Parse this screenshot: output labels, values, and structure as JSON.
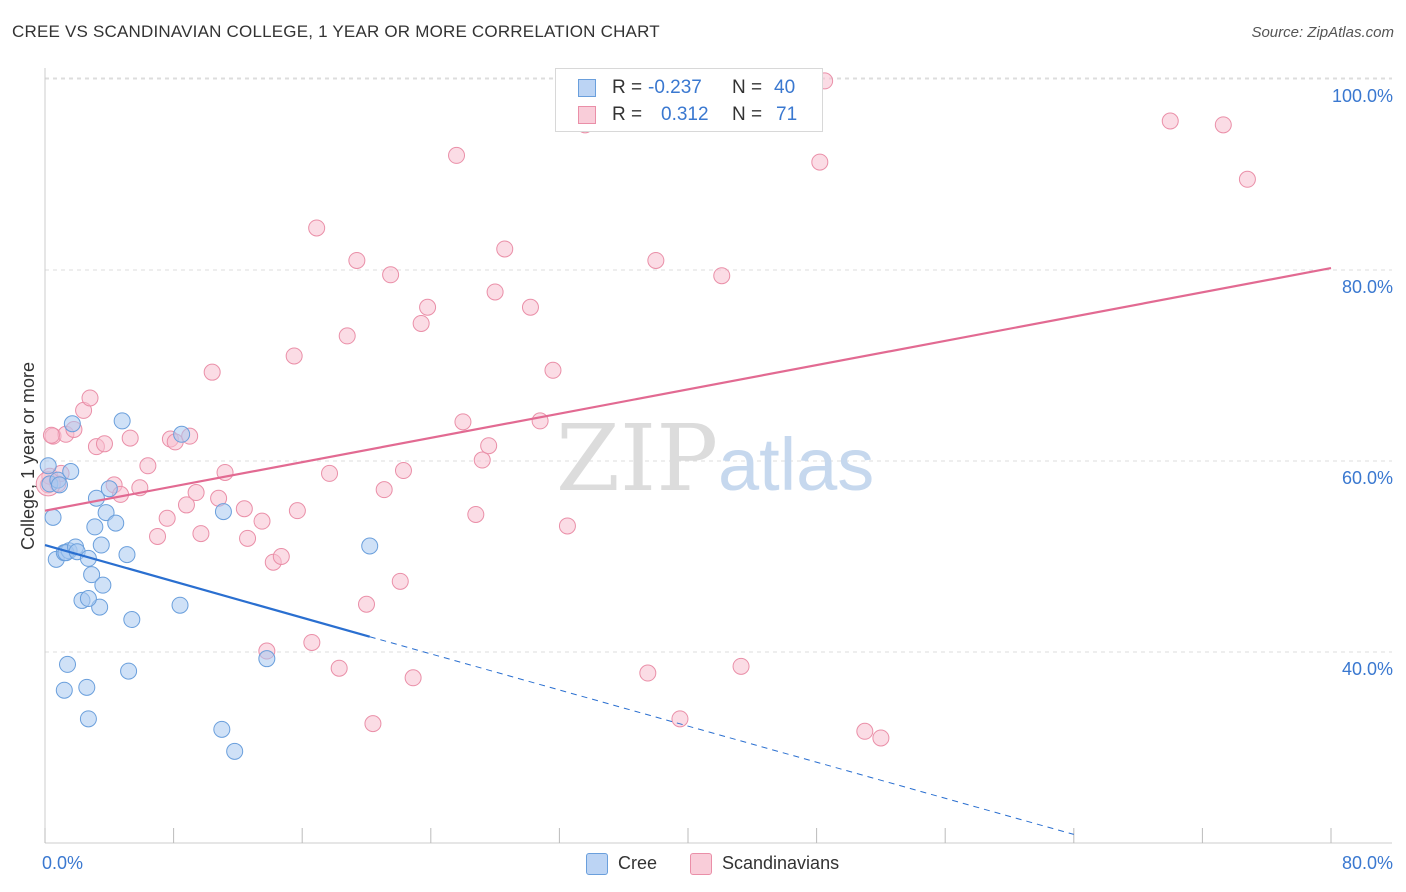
{
  "header": {
    "title": "CREE VS SCANDINAVIAN COLLEGE, 1 YEAR OR MORE CORRELATION CHART",
    "source": "Source: ZipAtlas.com"
  },
  "watermark": {
    "zip": "ZIP",
    "atlas": "atlas"
  },
  "legend": {
    "r_label": "R = ",
    "n_label": "N = ",
    "cree": {
      "r": "-0.237",
      "n": "40"
    },
    "scandinavians": {
      "r": "0.312",
      "n": "71"
    }
  },
  "colors": {
    "cree_fill": "#a8c8f0",
    "cree_stroke": "#6a9fdc",
    "cree_line": "#2a6fd0",
    "scand_fill": "#f7bfcf",
    "scand_stroke": "#ea8fa8",
    "scand_line": "#e26a92",
    "tick_label": "#3a78d0",
    "grid": "#dddddd"
  },
  "chart_data": {
    "type": "scatter",
    "title": "CREE VS SCANDINAVIAN COLLEGE, 1 YEAR OR MORE CORRELATION CHART",
    "xlabel": "",
    "ylabel": "College, 1 year or more",
    "xlim": [
      0,
      80
    ],
    "ylim": [
      20,
      102
    ],
    "x_tick_labels": [
      "0.0%",
      "80.0%"
    ],
    "y_ticks": [
      40,
      60,
      80,
      100
    ],
    "y_tick_labels": [
      "40.0%",
      "60.0%",
      "80.0%",
      "100.0%"
    ],
    "grid": true,
    "legend_position": "top-center",
    "series": [
      {
        "name": "Cree",
        "r": -0.237,
        "n": 40,
        "trend": {
          "x_start": 0,
          "y_start": 51.2,
          "x_solid_end": 20.2,
          "y_solid_end": 41.6,
          "x_end": 64.0,
          "y_end": 20.9
        },
        "points": [
          [
            0.2,
            59.5
          ],
          [
            0.3,
            57.6
          ],
          [
            0.5,
            54.1
          ],
          [
            0.8,
            58.0
          ],
          [
            0.7,
            49.7
          ],
          [
            1.2,
            50.4
          ],
          [
            1.5,
            50.6
          ],
          [
            1.6,
            58.9
          ],
          [
            1.7,
            63.9
          ],
          [
            1.3,
            50.4
          ],
          [
            1.9,
            51.0
          ],
          [
            2.0,
            50.5
          ],
          [
            2.3,
            45.4
          ],
          [
            2.7,
            49.8
          ],
          [
            2.9,
            48.1
          ],
          [
            3.1,
            53.1
          ],
          [
            3.2,
            56.1
          ],
          [
            3.4,
            44.7
          ],
          [
            3.5,
            51.2
          ],
          [
            3.6,
            47.0
          ],
          [
            3.8,
            54.6
          ],
          [
            4.0,
            57.1
          ],
          [
            4.4,
            53.5
          ],
          [
            4.8,
            64.2
          ],
          [
            5.1,
            50.2
          ],
          [
            5.2,
            38.0
          ],
          [
            5.4,
            43.4
          ],
          [
            2.7,
            45.6
          ],
          [
            8.4,
            44.9
          ],
          [
            8.5,
            62.8
          ],
          [
            11.1,
            54.7
          ],
          [
            11.0,
            31.9
          ],
          [
            11.8,
            29.6
          ],
          [
            13.8,
            39.3
          ],
          [
            20.2,
            51.1
          ],
          [
            1.4,
            38.7
          ],
          [
            1.2,
            36.0
          ],
          [
            2.6,
            36.3
          ],
          [
            2.7,
            33.0
          ],
          [
            0.9,
            57.5
          ]
        ]
      },
      {
        "name": "Scandinavians",
        "r": 0.312,
        "n": 71,
        "trend": {
          "x_start": 0,
          "y_start": 54.8,
          "x_end": 80,
          "y_end": 80.2
        },
        "points": [
          [
            0.2,
            57.5
          ],
          [
            0.3,
            58.4
          ],
          [
            0.5,
            62.6
          ],
          [
            0.8,
            57.6
          ],
          [
            1.3,
            62.8
          ],
          [
            1.8,
            63.3
          ],
          [
            2.4,
            65.3
          ],
          [
            2.8,
            66.6
          ],
          [
            3.2,
            61.5
          ],
          [
            3.7,
            61.8
          ],
          [
            4.3,
            57.5
          ],
          [
            4.7,
            56.5
          ],
          [
            5.3,
            62.4
          ],
          [
            5.9,
            57.2
          ],
          [
            6.4,
            59.5
          ],
          [
            7.0,
            52.1
          ],
          [
            7.6,
            54.0
          ],
          [
            7.8,
            62.3
          ],
          [
            8.1,
            62.0
          ],
          [
            8.8,
            55.4
          ],
          [
            9.0,
            62.6
          ],
          [
            9.4,
            56.7
          ],
          [
            9.7,
            52.4
          ],
          [
            10.4,
            69.3
          ],
          [
            10.8,
            56.1
          ],
          [
            11.2,
            58.8
          ],
          [
            12.4,
            55.0
          ],
          [
            12.6,
            51.9
          ],
          [
            13.5,
            53.7
          ],
          [
            13.8,
            40.1
          ],
          [
            14.2,
            49.4
          ],
          [
            14.7,
            50.0
          ],
          [
            15.5,
            71.0
          ],
          [
            15.7,
            54.8
          ],
          [
            16.6,
            41.0
          ],
          [
            16.9,
            84.4
          ],
          [
            17.7,
            58.7
          ],
          [
            18.3,
            38.3
          ],
          [
            18.8,
            73.1
          ],
          [
            19.4,
            81.0
          ],
          [
            20.0,
            45.0
          ],
          [
            20.4,
            32.5
          ],
          [
            21.1,
            57.0
          ],
          [
            21.5,
            79.5
          ],
          [
            22.1,
            47.4
          ],
          [
            22.3,
            59.0
          ],
          [
            22.9,
            37.3
          ],
          [
            23.4,
            74.4
          ],
          [
            23.8,
            76.1
          ],
          [
            25.6,
            92.0
          ],
          [
            26.0,
            64.1
          ],
          [
            26.8,
            54.4
          ],
          [
            27.2,
            60.1
          ],
          [
            27.6,
            61.6
          ],
          [
            28.0,
            77.7
          ],
          [
            28.6,
            82.2
          ],
          [
            30.2,
            76.1
          ],
          [
            30.8,
            64.2
          ],
          [
            31.6,
            69.5
          ],
          [
            32.5,
            53.2
          ],
          [
            33.6,
            95.2
          ],
          [
            37.5,
            37.8
          ],
          [
            38.0,
            81.0
          ],
          [
            39.5,
            33.0
          ],
          [
            42.1,
            79.4
          ],
          [
            43.3,
            38.5
          ],
          [
            48.5,
            99.8
          ],
          [
            48.2,
            91.3
          ],
          [
            51.0,
            31.7
          ],
          [
            52.0,
            31.0
          ],
          [
            70.0,
            95.6
          ]
        ],
        "extra_points": [
          [
            73.3,
            95.2
          ],
          [
            74.8,
            89.5
          ],
          [
            0.4,
            62.7
          ],
          [
            1.0,
            58.7
          ]
        ]
      }
    ]
  }
}
